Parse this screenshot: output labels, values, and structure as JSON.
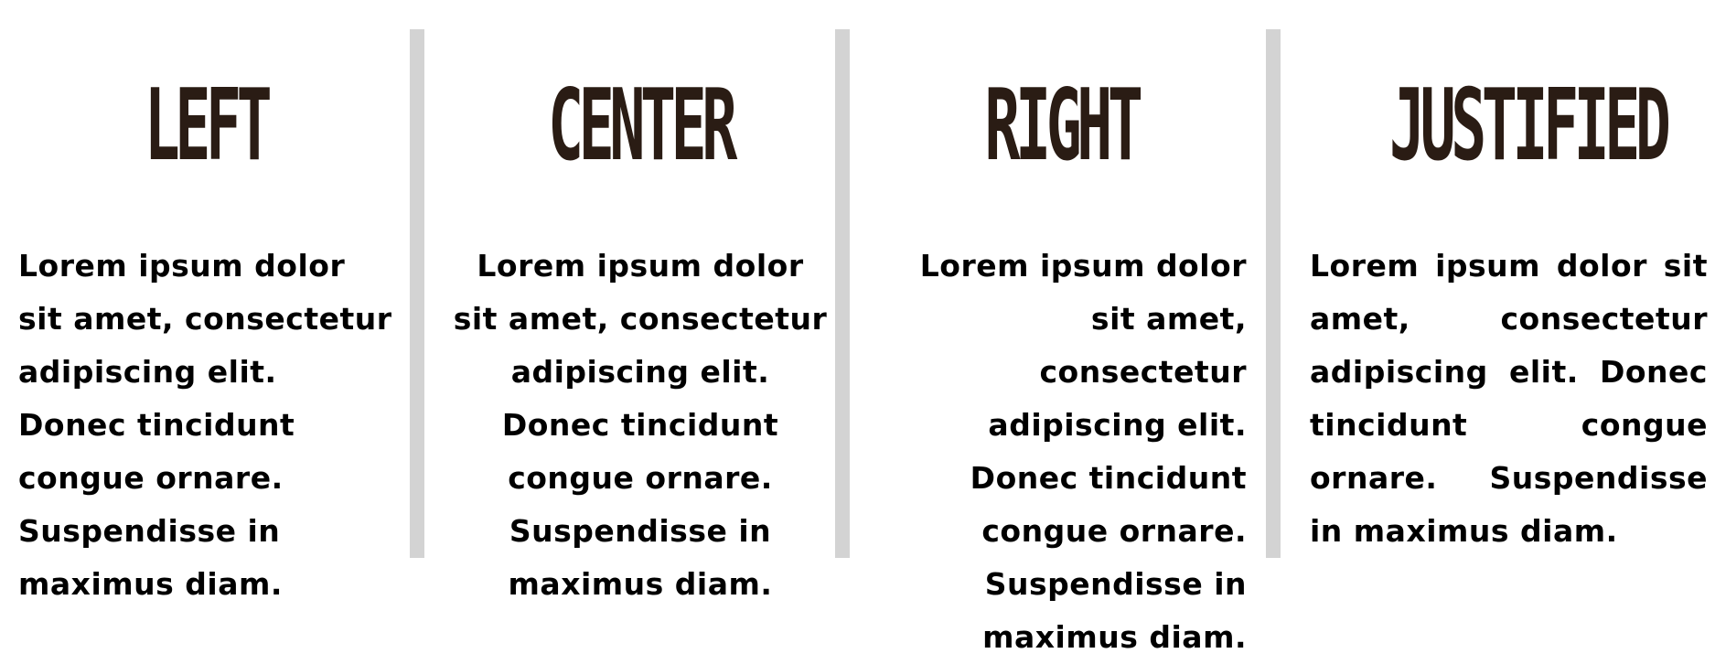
{
  "columns": [
    {
      "id": "left",
      "title": "LEFT",
      "text": "Lorem ipsum dolor sit amet, consectetur adipiscing elit. Donec tincidunt congue ornare. Suspendisse in maximus diam."
    },
    {
      "id": "center",
      "title": "CENTER",
      "text": "Lorem ipsum dolor sit amet, consectetur adipiscing elit. Donec tincidunt congue ornare. Suspendisse in maximus diam."
    },
    {
      "id": "right",
      "title": "RIGHT",
      "text": "Lorem ipsum dolor sit amet, consectetur adipiscing elit. Donec tincidunt congue ornare. Suspendisse in maximus diam."
    },
    {
      "id": "justified",
      "title": "JUSTIFIED",
      "text": "Lorem ipsum dolor sit amet, consectetur adipiscing elit. Donec tincidunt congue ornare. Suspendisse in maximus diam."
    }
  ],
  "colors": {
    "heading": "#2a1c14",
    "body_text": "#000000",
    "divider": "#d3d3d3",
    "background": "#ffffff"
  }
}
